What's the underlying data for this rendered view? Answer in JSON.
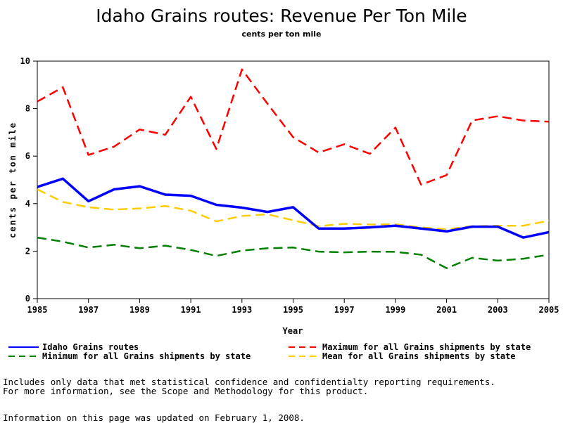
{
  "chart_data": {
    "type": "line",
    "title": "Idaho Grains routes: Revenue Per Ton Mile",
    "subtitle": "cents per ton mile",
    "xlabel": "Year",
    "ylabel": "cents per ton mile",
    "xlim": [
      1985,
      2005
    ],
    "ylim": [
      0,
      10
    ],
    "xticks": [
      1985,
      1987,
      1989,
      1991,
      1993,
      1995,
      1997,
      1999,
      2001,
      2003,
      2005
    ],
    "yticks": [
      0,
      2,
      4,
      6,
      8,
      10
    ],
    "grid": false,
    "legend_position": "bottom",
    "x": [
      1985,
      1986,
      1987,
      1988,
      1989,
      1990,
      1991,
      1992,
      1993,
      1994,
      1995,
      1996,
      1997,
      1998,
      1999,
      2000,
      2001,
      2002,
      2003,
      2004,
      2005
    ],
    "series": [
      {
        "name": "Idaho Grains routes",
        "color": "#0000ff",
        "dash": "solid",
        "values": [
          4.7,
          5.05,
          4.1,
          4.6,
          4.73,
          4.38,
          4.33,
          3.95,
          3.83,
          3.65,
          3.85,
          2.95,
          2.95,
          3.0,
          3.07,
          2.95,
          2.83,
          3.03,
          3.03,
          2.57,
          2.8
        ]
      },
      {
        "name": "Maximum for all Grains shipments by state",
        "color": "#ff0000",
        "dash": "dashed",
        "values": [
          8.3,
          8.9,
          6.05,
          6.4,
          7.12,
          6.9,
          8.5,
          6.3,
          9.65,
          8.2,
          6.8,
          6.15,
          6.5,
          6.1,
          7.2,
          4.8,
          5.2,
          7.5,
          7.68,
          7.5,
          7.45
        ]
      },
      {
        "name": "Minimum for all Grains shipments by state",
        "color": "#008000",
        "dash": "dashed",
        "values": [
          2.57,
          2.4,
          2.15,
          2.27,
          2.12,
          2.23,
          2.05,
          1.8,
          2.02,
          2.12,
          2.15,
          1.98,
          1.95,
          1.98,
          1.97,
          1.85,
          1.28,
          1.72,
          1.6,
          1.68,
          1.85
        ]
      },
      {
        "name": "Mean for all Grains shipments by state",
        "color": "#ffcc00",
        "dash": "dashed",
        "values": [
          4.6,
          4.07,
          3.85,
          3.75,
          3.8,
          3.9,
          3.7,
          3.25,
          3.48,
          3.55,
          3.3,
          3.05,
          3.15,
          3.12,
          3.13,
          3.0,
          2.92,
          3.05,
          3.07,
          3.07,
          3.28
        ]
      }
    ]
  },
  "notes": {
    "line1": "Includes only data that met statistical confidence and confidentialty reporting requirements.",
    "line2": "For more information, see the Scope and Methodology for this product.",
    "updated": "Information on this page was updated on February 1, 2008."
  }
}
